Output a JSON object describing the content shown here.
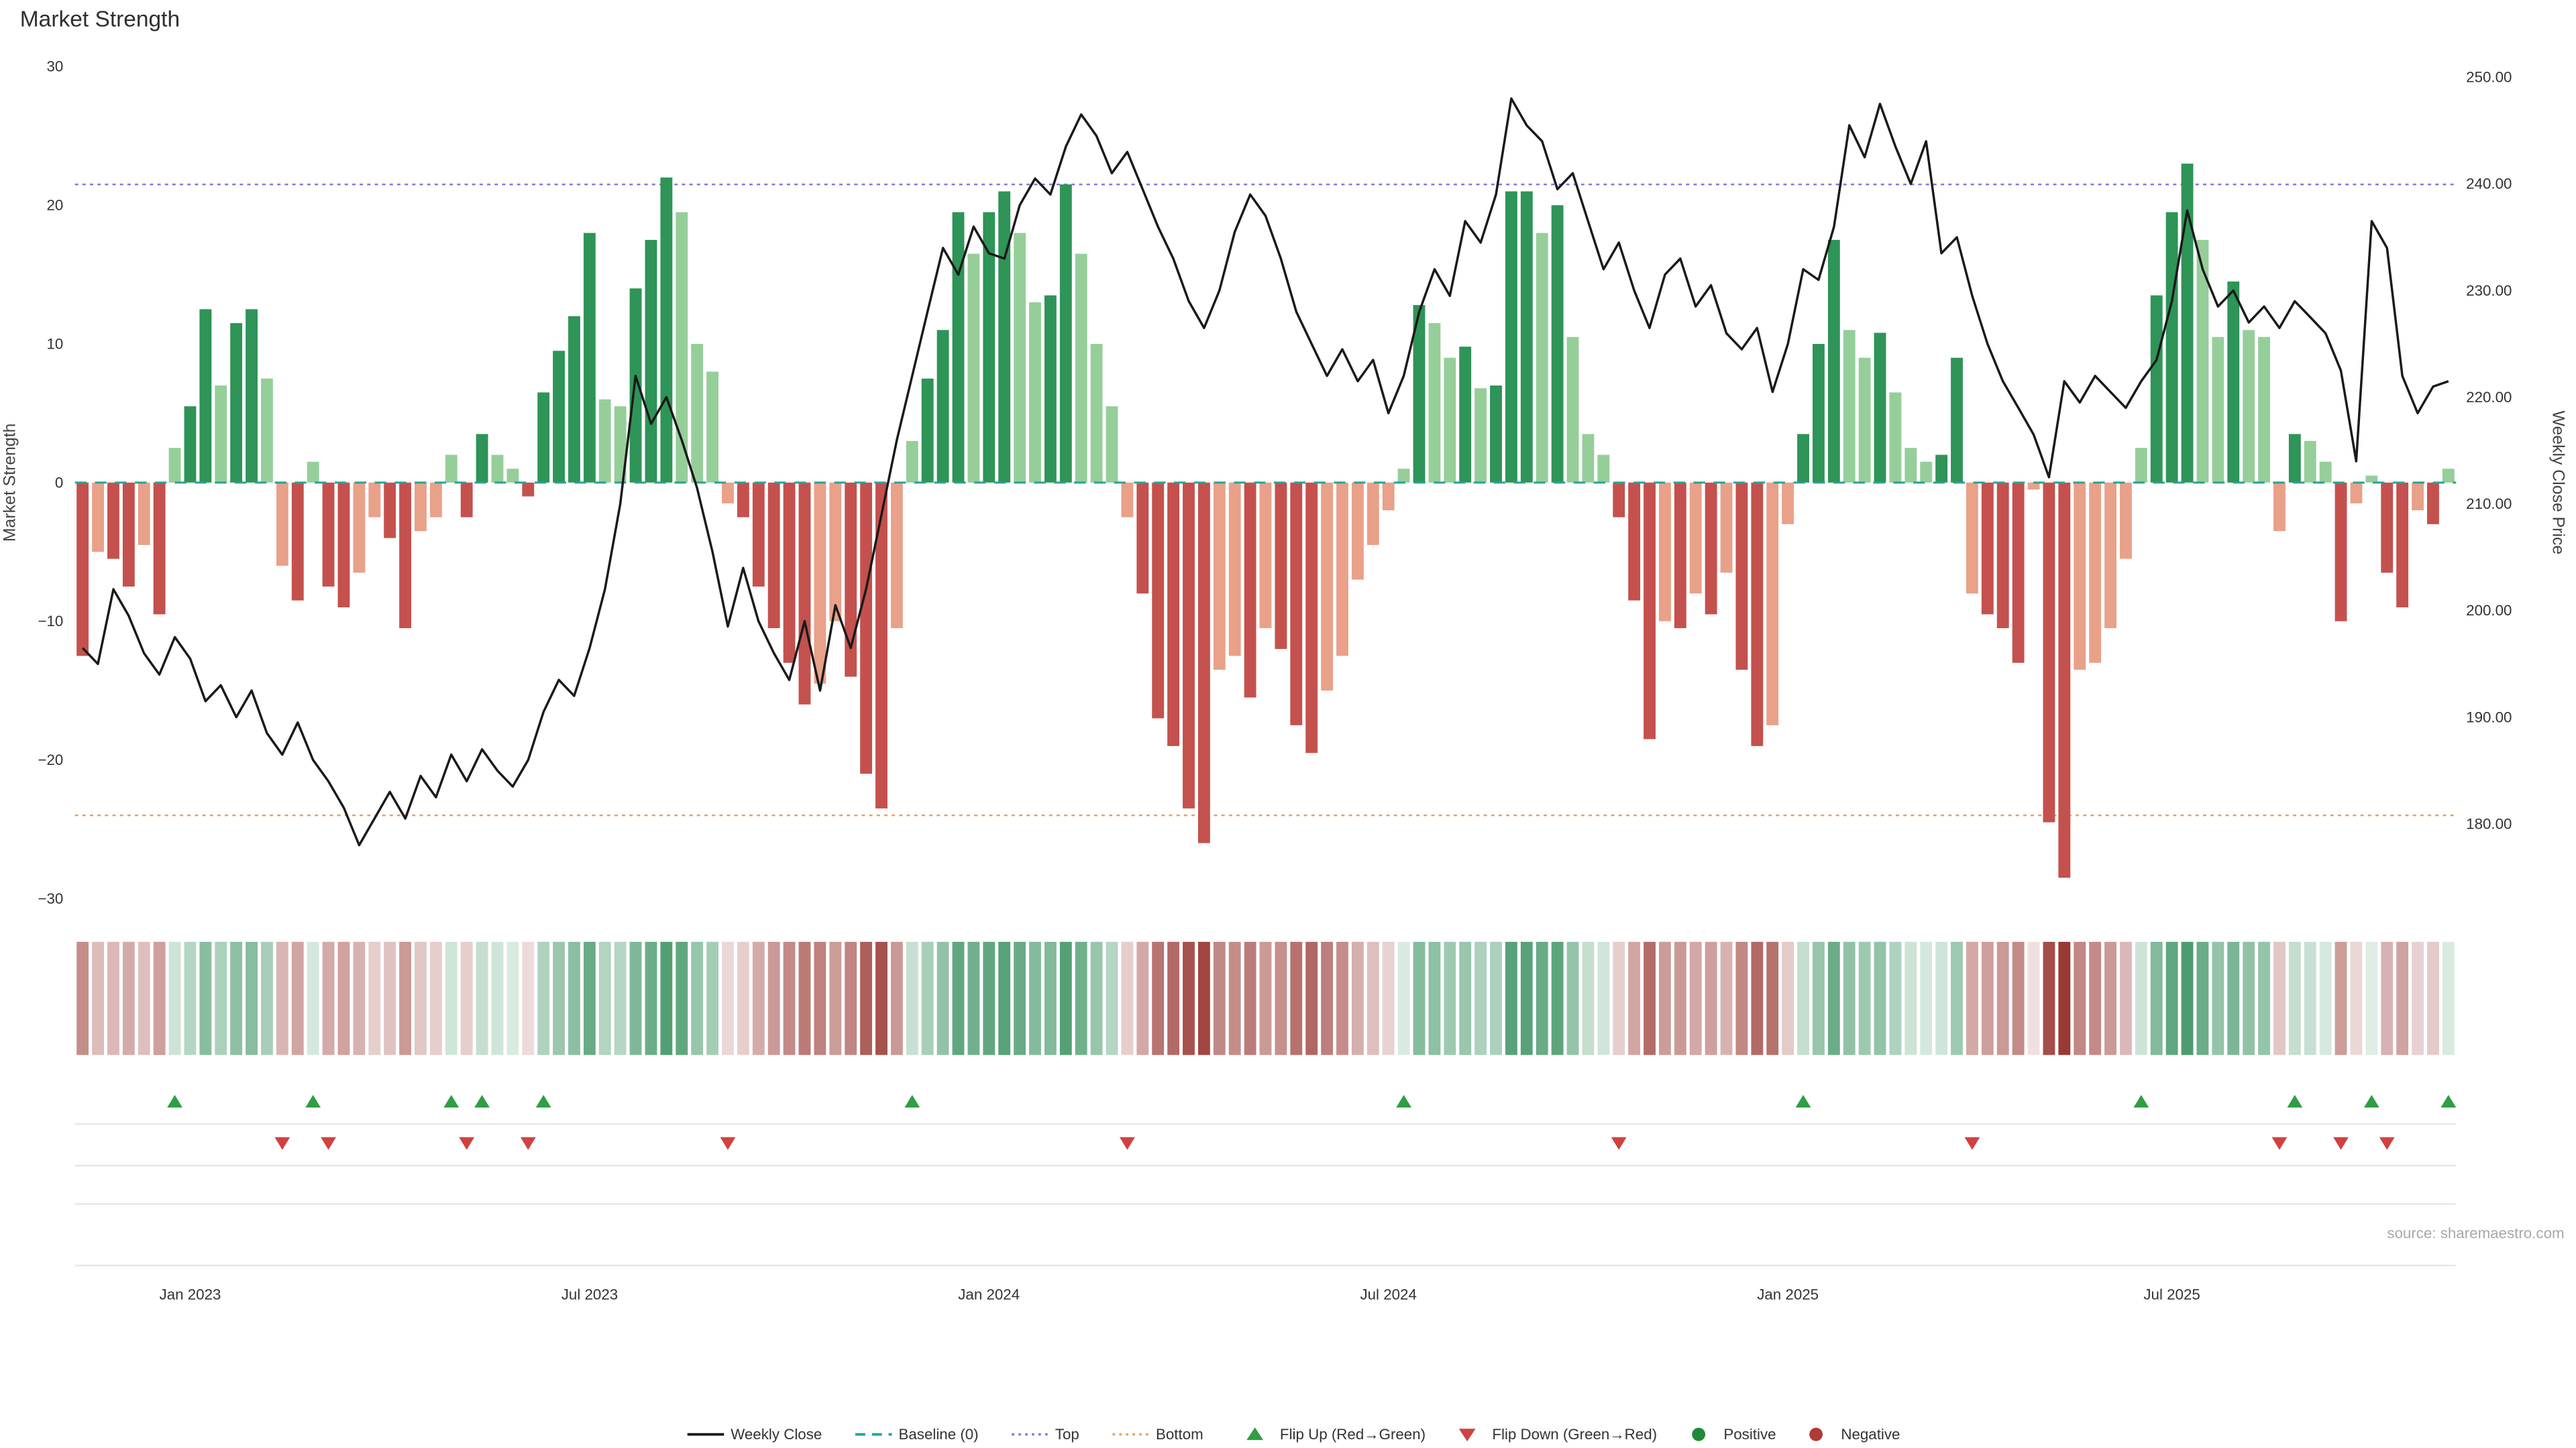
{
  "page": {
    "title": "Market Strength",
    "source": "source: sharemaestro.com"
  },
  "axes": {
    "left_title": "Market Strength",
    "right_title": "Weekly Close Price",
    "left_tick_labels": [
      "30",
      "20",
      "10",
      "0",
      "−10",
      "−20",
      "−30"
    ],
    "left_tick_values": [
      30,
      20,
      10,
      0,
      -10,
      -20,
      -30
    ],
    "right_tick_labels": [
      "250.00",
      "240.00",
      "230.00",
      "220.00",
      "210.00",
      "200.00",
      "190.00",
      "180.00"
    ],
    "right_tick_values": [
      250,
      240,
      230,
      220,
      210,
      200,
      190,
      180
    ],
    "x_tick_labels": [
      "Jan 2023",
      "Jul 2023",
      "Jan 2024",
      "Jul 2024",
      "Jan 2025",
      "Jul 2025"
    ],
    "x_tick_weeks": [
      7,
      33,
      59,
      85,
      111,
      136
    ]
  },
  "chart_data": {
    "type": "bar+line",
    "x_unit": "week",
    "weeks": 155,
    "title": "Market Strength",
    "reference_lines": {
      "baseline": 0,
      "top": 21.5,
      "bottom": -24
    },
    "strength": {
      "name": "Market Strength",
      "type": "bar",
      "axis": "left",
      "ylim": [
        -30,
        30
      ],
      "values": [
        -12.5,
        -5,
        -5.5,
        -7.5,
        -4.5,
        -9.5,
        2.5,
        5.5,
        12.5,
        7,
        11.5,
        12.5,
        7.5,
        -6,
        -8.5,
        1.5,
        -7.5,
        -9,
        -6.5,
        -2.5,
        -4,
        -10.5,
        -3.5,
        -2.5,
        2,
        -2.5,
        3.5,
        2,
        1,
        -1,
        6.5,
        9.5,
        12,
        18,
        6,
        5.5,
        14,
        17.5,
        22,
        19.5,
        10,
        8,
        -1.5,
        -2.5,
        -7.5,
        -10.5,
        -13,
        -16,
        -14.5,
        -10,
        -14,
        -21,
        -23.5,
        -10.5,
        3,
        7.5,
        11,
        19.5,
        16.5,
        19.5,
        21,
        18,
        13,
        13.5,
        21.5,
        16.5,
        10,
        5.5,
        -2.5,
        -8,
        -17,
        -19,
        -23.5,
        -26,
        -13.5,
        -12.5,
        -15.5,
        -10.5,
        -12,
        -17.5,
        -19.5,
        -15,
        -12.5,
        -7,
        -4.5,
        -2,
        1,
        12.8,
        11.5,
        9,
        9.8,
        6.8,
        7,
        21,
        21,
        18,
        20,
        10.5,
        3.5,
        2,
        -2.5,
        -8.5,
        -18.5,
        -10,
        -10.5,
        -8,
        -9.5,
        -6.5,
        -13.5,
        -19,
        -17.5,
        -3,
        3.5,
        10,
        17.5,
        11,
        9,
        10.8,
        6.5,
        2.5,
        1.5,
        2,
        9,
        -8,
        -9.5,
        -10.5,
        -13,
        -0.5,
        -24.5,
        -28.5,
        -13.5,
        -13,
        -10.5,
        -5.5,
        2.5,
        13.5,
        19.5,
        23,
        17.5,
        10.5,
        14.5,
        11,
        10.5,
        -3.5,
        3.5,
        3,
        1.5,
        -10,
        -1.5,
        0.5,
        -6.5,
        -9,
        -2,
        -3,
        1
      ]
    },
    "price": {
      "name": "Weekly Close",
      "type": "line",
      "axis": "right",
      "ylim": [
        173,
        251
      ],
      "values": [
        196.5,
        195.0,
        202.0,
        199.5,
        196.0,
        194.0,
        197.5,
        195.5,
        191.5,
        193.0,
        190.0,
        192.5,
        188.5,
        186.5,
        189.5,
        186.0,
        184.0,
        181.5,
        178.0,
        180.5,
        183.0,
        180.5,
        184.5,
        182.5,
        186.5,
        184.0,
        187.0,
        185.0,
        183.5,
        186.0,
        190.5,
        193.5,
        192.0,
        196.5,
        202.0,
        210.0,
        222.0,
        217.5,
        220.0,
        216.0,
        211.5,
        205.5,
        198.5,
        204.0,
        199.0,
        196.0,
        193.5,
        199.0,
        192.5,
        200.5,
        196.5,
        202.0,
        209.0,
        216.0,
        222.0,
        228.0,
        234.0,
        231.5,
        236.0,
        233.5,
        233.0,
        238.0,
        240.5,
        239.0,
        243.5,
        246.5,
        244.5,
        241.0,
        243.0,
        239.5,
        236.0,
        233.0,
        229.0,
        226.5,
        230.0,
        235.5,
        239.0,
        237.0,
        233.0,
        228.0,
        225.0,
        222.0,
        224.5,
        221.5,
        223.5,
        218.5,
        222.0,
        228.0,
        232.0,
        229.5,
        236.5,
        234.5,
        239.0,
        248.0,
        245.5,
        244.0,
        239.5,
        241.0,
        236.5,
        232.0,
        234.5,
        230.0,
        226.5,
        231.5,
        233.0,
        228.5,
        230.5,
        226.0,
        224.5,
        226.5,
        220.5,
        225.0,
        232.0,
        231.0,
        236.0,
        245.5,
        242.5,
        247.5,
        243.5,
        240.0,
        244.0,
        233.5,
        235.0,
        229.5,
        225.0,
        221.5,
        219.0,
        216.5,
        212.5,
        221.5,
        219.5,
        222.0,
        220.5,
        219.0,
        221.5,
        223.5,
        229.0,
        237.5,
        232.0,
        228.5,
        230.0,
        227.0,
        228.5,
        226.5,
        229.0,
        227.5,
        226.0,
        222.5,
        214.0,
        236.5,
        234.0,
        222.0,
        218.5,
        221.0,
        221.5
      ]
    }
  },
  "colors": {
    "weekly_close": "#1a1a1a",
    "baseline": "#2aa198",
    "top": "#9370db",
    "bottom": "#e9a15c",
    "bar_pos_dark": "#2e9457",
    "bar_pos_light": "#96ce9a",
    "bar_neg_dark": "#c4514d",
    "bar_neg_light": "#e9a189",
    "heat_pos": "#2e8b57",
    "heat_neg": "#993732",
    "flip_up": "#2f9e44",
    "flip_down": "#d1413f"
  },
  "legend": {
    "items": [
      {
        "label": "Weekly Close",
        "swatch": "line",
        "color": "#1a1a1a"
      },
      {
        "label": "Baseline (0)",
        "swatch": "dashed-line",
        "color": "#2aa198"
      },
      {
        "label": "Top",
        "swatch": "dotted-line",
        "color": "#9370db"
      },
      {
        "label": "Bottom",
        "swatch": "dotted-line",
        "color": "#e9a15c"
      },
      {
        "label": "Flip Up (Red→Green)",
        "swatch": "triangle-up",
        "color": "#2f9e44"
      },
      {
        "label": "Flip Down (Green→Red)",
        "swatch": "triangle-down",
        "color": "#d1413f"
      },
      {
        "label": "Positive",
        "swatch": "dot",
        "color": "#1f8a3b"
      },
      {
        "label": "Negative",
        "swatch": "dot",
        "color": "#b03a37"
      }
    ]
  }
}
